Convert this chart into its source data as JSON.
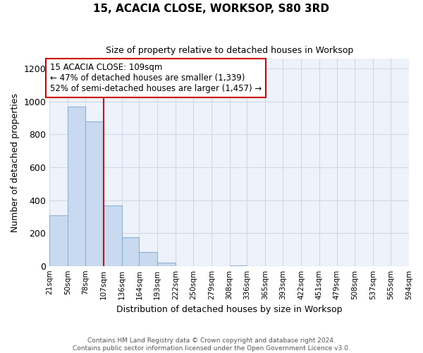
{
  "title": "15, ACACIA CLOSE, WORKSOP, S80 3RD",
  "subtitle": "Size of property relative to detached houses in Worksop",
  "xlabel": "Distribution of detached houses by size in Worksop",
  "ylabel": "Number of detached properties",
  "bin_edges": [
    21,
    50,
    78,
    107,
    136,
    164,
    193,
    222,
    250,
    279,
    308,
    336,
    365,
    393,
    422,
    451,
    479,
    508,
    537,
    565,
    594
  ],
  "bar_heights": [
    310,
    970,
    880,
    370,
    175,
    85,
    20,
    0,
    0,
    0,
    5,
    0,
    0,
    0,
    0,
    0,
    0,
    0,
    0,
    0
  ],
  "bar_color": "#c9d9ef",
  "bar_edgecolor": "#8ab4d8",
  "ylim": [
    0,
    1260
  ],
  "yticks": [
    0,
    200,
    400,
    600,
    800,
    1000,
    1200
  ],
  "property_line_x": 107,
  "property_line_color": "#cc0000",
  "annotation_title": "15 ACACIA CLOSE: 109sqm",
  "annotation_line1": "← 47% of detached houses are smaller (1,339)",
  "annotation_line2": "52% of semi-detached houses are larger (1,457) →",
  "annotation_box_color": "#ffffff",
  "annotation_box_edgecolor": "#cc0000",
  "footer_line1": "Contains HM Land Registry data © Crown copyright and database right 2024.",
  "footer_line2": "Contains public sector information licensed under the Open Government Licence v3.0.",
  "background_color": "#ffffff",
  "grid_color": "#d0d8e8",
  "plot_bg_color": "#eef2fa"
}
